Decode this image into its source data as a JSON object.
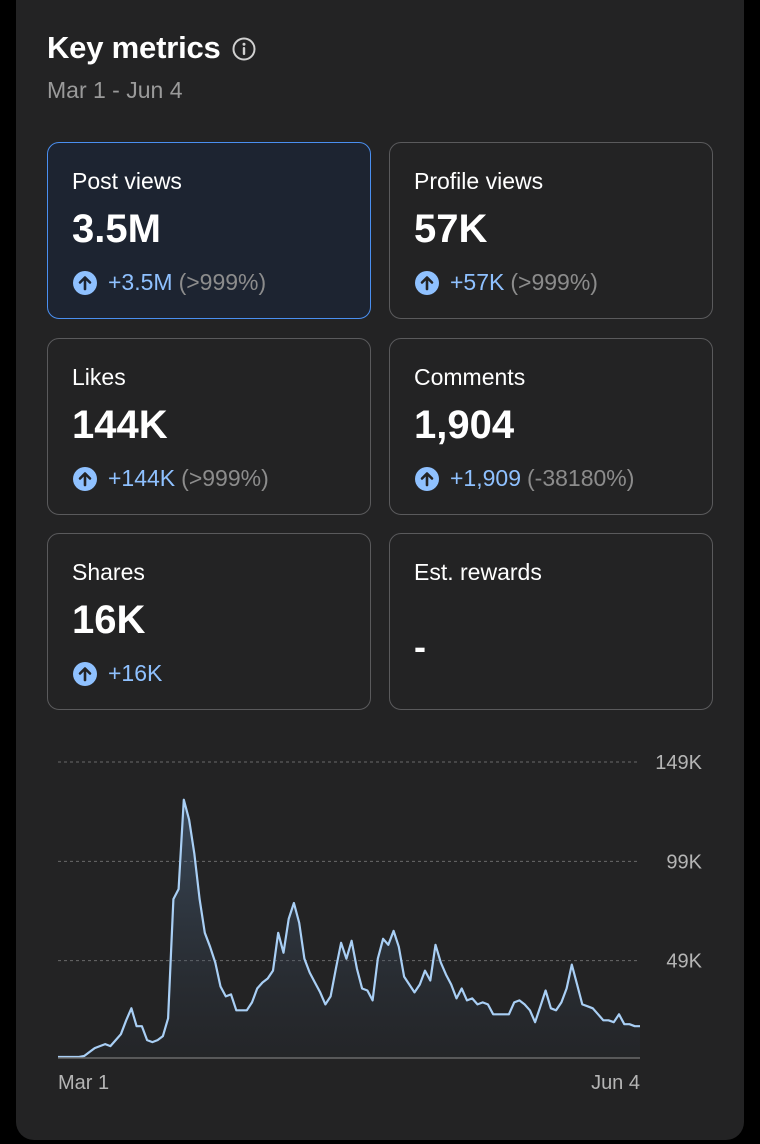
{
  "header": {
    "title": "Key metrics",
    "date_range": "Mar 1 - Jun 4"
  },
  "metrics": [
    {
      "label": "Post views",
      "value": "3.5M",
      "delta": "+3.5M",
      "pct": "(>999%)",
      "selected": true
    },
    {
      "label": "Profile views",
      "value": "57K",
      "delta": "+57K",
      "pct": "(>999%)",
      "selected": false
    },
    {
      "label": "Likes",
      "value": "144K",
      "delta": "+144K",
      "pct": "(>999%)",
      "selected": false
    },
    {
      "label": "Comments",
      "value": "1,904",
      "delta": "+1,909",
      "pct": "(-38180%)",
      "selected": false
    },
    {
      "label": "Shares",
      "value": "16K",
      "delta": "+16K",
      "pct": "",
      "selected": false
    },
    {
      "label": "Est. rewards",
      "value": "-",
      "delta": "",
      "pct": "",
      "selected": false
    }
  ],
  "colors": {
    "accent": "#8fc1ff",
    "selected_border": "#4a8ff0",
    "line": "#a9cff5"
  },
  "icons": {
    "info": "info-icon",
    "up": "arrow-up-circle-icon"
  },
  "chart_data": {
    "type": "area",
    "title": "",
    "xlabel": "",
    "ylabel": "",
    "x_labels": [
      "Mar 1",
      "Jun 4"
    ],
    "y_ticks": [
      {
        "value": 49000,
        "label": "49K"
      },
      {
        "value": 99000,
        "label": "99K"
      },
      {
        "value": 149000,
        "label": "149K"
      }
    ],
    "ylim": [
      0,
      149000
    ],
    "grid": true,
    "series": [
      {
        "values": [
          500,
          500,
          500,
          500,
          500,
          1000,
          3000,
          5000,
          6000,
          7000,
          6000,
          9000,
          12000,
          19000,
          25000,
          16000,
          16000,
          9000,
          8000,
          9000,
          11000,
          20000,
          80000,
          85000,
          130000,
          120000,
          103000,
          80000,
          63000,
          56000,
          48000,
          36000,
          31000,
          32000,
          24000,
          24000,
          24000,
          28000,
          35000,
          38000,
          40000,
          44000,
          63000,
          53000,
          70000,
          78000,
          68000,
          50000,
          43000,
          38000,
          33000,
          27000,
          31000,
          45000,
          58000,
          50000,
          59000,
          45000,
          35000,
          34000,
          29000,
          50000,
          60000,
          57000,
          64000,
          56000,
          41000,
          37000,
          33000,
          37000,
          44000,
          39000,
          57000,
          48000,
          42000,
          37000,
          30000,
          35000,
          29000,
          30000,
          27000,
          28000,
          27000,
          22000,
          22000,
          22000,
          22000,
          28000,
          29000,
          27000,
          24000,
          18000,
          26000,
          34000,
          25000,
          24000,
          28000,
          35000,
          47000,
          37000,
          27000,
          26000,
          25000,
          22000,
          19000,
          19000,
          18000,
          22000,
          17000,
          17000,
          16000,
          16000
        ]
      }
    ]
  }
}
